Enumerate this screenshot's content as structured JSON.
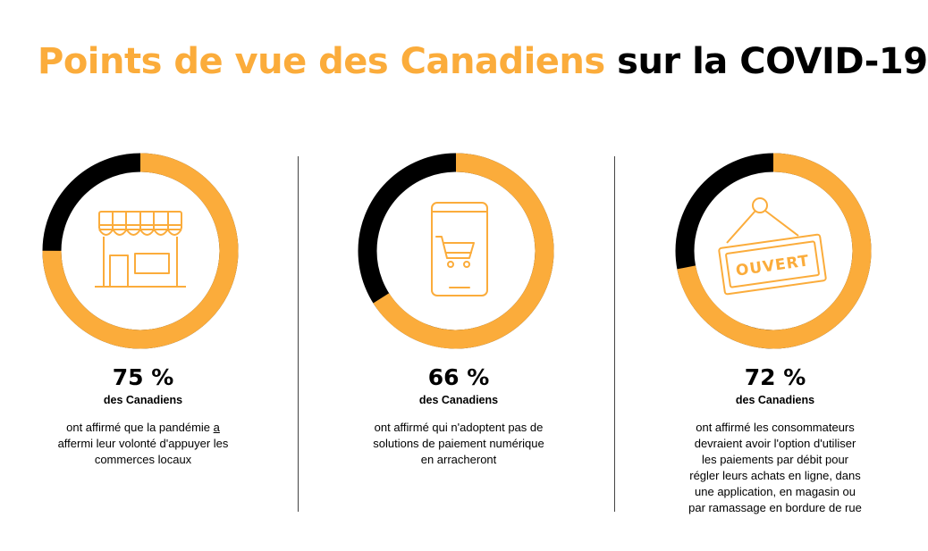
{
  "title": {
    "highlight": "Points de vue des Canadiens",
    "rest": "sur la COVID-19"
  },
  "colors": {
    "accent": "#FBAC3B",
    "dark": "#000000"
  },
  "chart_data": {
    "type": "pie",
    "title": "Points de vue des Canadiens sur la COVID-19",
    "series": [
      {
        "value": 75,
        "label": "75 %",
        "subject": "des Canadiens",
        "description_parts": [
          "ont affirmé que la pandémie ",
          "a",
          "\naffermi leur volonté d'appuyer les\ncommerces locaux"
        ],
        "icon": "storefront-icon"
      },
      {
        "value": 66,
        "label": "66 %",
        "subject": "des Canadiens",
        "description_parts": [
          "ont affirmé qui n'adoptent pas de\nsolutions de paiement numérique\nen arracheront"
        ],
        "icon": "smartphone-cart-icon"
      },
      {
        "value": 72,
        "label": "72 %",
        "subject": "des Canadiens",
        "description_parts": [
          "ont affirmé les consommateurs\ndevraient avoir l'option d'utiliser\nles paiements par débit pour\nrégler leurs achats en ligne, dans\nune application, en magasin ou\npar ramassage en bordure de rue"
        ],
        "icon": "open-sign-icon"
      }
    ]
  },
  "icons": {
    "open_sign_text": "OUVERT"
  }
}
